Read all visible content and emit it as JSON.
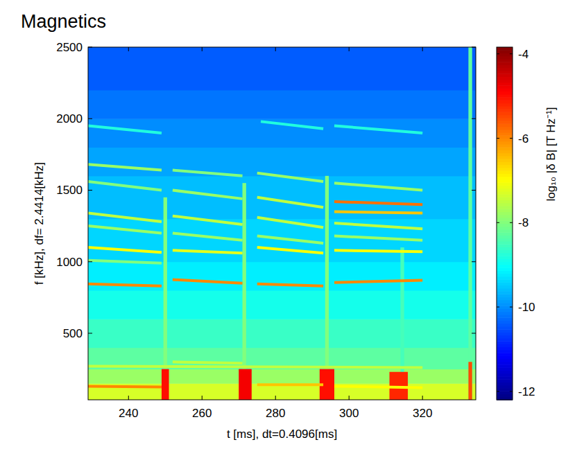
{
  "chart_data": {
    "type": "spectrogram",
    "title": "Magnetics",
    "xlabel": "t [ms], dt=0.4096[ms]",
    "ylabel": "f [kHz], df= 2.4414[kHz]",
    "xlim": [
      229,
      334.5
    ],
    "ylim": [
      35,
      2500
    ],
    "xticks": [
      240,
      260,
      280,
      300,
      320
    ],
    "yticks": [
      500,
      1000,
      1500,
      2000,
      2500
    ],
    "colorbar": {
      "label": "log₁₀ |δ B| [T Hz⁻¹]",
      "clim": [
        -12.2,
        -3.84
      ],
      "cticks": [
        -12,
        -10,
        -8,
        -6,
        -4
      ]
    },
    "background": {
      "f_edges": [
        35,
        150,
        250,
        400,
        600,
        800,
        1000,
        1300,
        1600,
        1800,
        2000,
        2200,
        2500
      ],
      "values": [
        -7.3,
        -7.8,
        -8.3,
        -8.6,
        -8.9,
        -9.2,
        -9.4,
        -9.6,
        -9.8,
        -10,
        -10.2,
        -10.4
      ]
    },
    "modes": [
      {
        "t": [
          229,
          249
        ],
        "f": [
          845,
          830
        ],
        "value": -6
      },
      {
        "t": [
          229,
          249
        ],
        "f": [
          1100,
          1065
        ],
        "value": -7
      },
      {
        "t": [
          229,
          249
        ],
        "f": [
          1680,
          1640
        ],
        "value": -7.8
      },
      {
        "t": [
          229,
          249
        ],
        "f": [
          1560,
          1500
        ],
        "value": -8
      },
      {
        "t": [
          229,
          249
        ],
        "f": [
          1340,
          1280
        ],
        "value": -7.5
      },
      {
        "t": [
          229,
          249
        ],
        "f": [
          1250,
          1200
        ],
        "value": -7.8
      },
      {
        "t": [
          229,
          249
        ],
        "f": [
          1010,
          990
        ],
        "value": -8
      },
      {
        "t": [
          229,
          249
        ],
        "f": [
          130,
          125
        ],
        "value": -6
      },
      {
        "t": [
          229,
          249
        ],
        "f": [
          1950,
          1900
        ],
        "value": -8.8
      },
      {
        "t": [
          252,
          271
        ],
        "f": [
          875,
          850
        ],
        "value": -6
      },
      {
        "t": [
          252,
          271
        ],
        "f": [
          1080,
          1060
        ],
        "value": -7.2
      },
      {
        "t": [
          252,
          271
        ],
        "f": [
          1640,
          1600
        ],
        "value": -8
      },
      {
        "t": [
          252,
          271
        ],
        "f": [
          1500,
          1440
        ],
        "value": -7.8
      },
      {
        "t": [
          252,
          271
        ],
        "f": [
          1320,
          1260
        ],
        "value": -7.5
      },
      {
        "t": [
          252,
          271
        ],
        "f": [
          1200,
          1150
        ],
        "value": -7.8
      },
      {
        "t": [
          252,
          271
        ],
        "f": [
          300,
          290
        ],
        "value": -7.5
      },
      {
        "t": [
          275,
          293
        ],
        "f": [
          845,
          830
        ],
        "value": -6
      },
      {
        "t": [
          275,
          293
        ],
        "f": [
          1100,
          1060
        ],
        "value": -7
      },
      {
        "t": [
          275,
          293
        ],
        "f": [
          1620,
          1560
        ],
        "value": -7.8
      },
      {
        "t": [
          275,
          293
        ],
        "f": [
          1450,
          1380
        ],
        "value": -7.5
      },
      {
        "t": [
          275,
          293
        ],
        "f": [
          1310,
          1240
        ],
        "value": -7.5
      },
      {
        "t": [
          275,
          293
        ],
        "f": [
          1180,
          1130
        ],
        "value": -7.8
      },
      {
        "t": [
          275,
          293
        ],
        "f": [
          140,
          140
        ],
        "value": -6.5
      },
      {
        "t": [
          276,
          293
        ],
        "f": [
          1980,
          1930
        ],
        "value": -8.8
      },
      {
        "t": [
          296,
          320
        ],
        "f": [
          855,
          870
        ],
        "value": -6
      },
      {
        "t": [
          296,
          320
        ],
        "f": [
          1080,
          1070
        ],
        "value": -7
      },
      {
        "t": [
          296,
          320
        ],
        "f": [
          1420,
          1400
        ],
        "value": -5.8
      },
      {
        "t": [
          296,
          320
        ],
        "f": [
          1350,
          1340
        ],
        "value": -6.5
      },
      {
        "t": [
          296,
          320
        ],
        "f": [
          1550,
          1500
        ],
        "value": -7.8
      },
      {
        "t": [
          296,
          320
        ],
        "f": [
          1270,
          1230
        ],
        "value": -7.5
      },
      {
        "t": [
          296,
          320
        ],
        "f": [
          1180,
          1150
        ],
        "value": -7.8
      },
      {
        "t": [
          296,
          320
        ],
        "f": [
          130,
          120
        ],
        "value": -7
      },
      {
        "t": [
          296,
          320
        ],
        "f": [
          1950,
          1900
        ],
        "value": -8.8
      },
      {
        "t": [
          229,
          320
        ],
        "f": [
          270,
          260
        ],
        "value": -7.5
      }
    ],
    "patches": [
      {
        "t": [
          249.5,
          250.5
        ],
        "f": [
          35,
          1450
        ],
        "value": -8
      },
      {
        "t": [
          271,
          272
        ],
        "f": [
          35,
          1550
        ],
        "value": -8
      },
      {
        "t": [
          293.5,
          294.5
        ],
        "f": [
          35,
          1600
        ],
        "value": -8
      },
      {
        "t": [
          314,
          315
        ],
        "f": [
          35,
          1100
        ],
        "value": -8.5
      },
      {
        "t": [
          332.5,
          333.5
        ],
        "f": [
          35,
          2500
        ],
        "value": -8.3
      },
      {
        "t": [
          249,
          251
        ],
        "f": [
          35,
          250
        ],
        "value": -5
      },
      {
        "t": [
          270,
          273.5
        ],
        "f": [
          35,
          250
        ],
        "value": -4.8
      },
      {
        "t": [
          292,
          296
        ],
        "f": [
          35,
          250
        ],
        "value": -5
      },
      {
        "t": [
          311,
          316
        ],
        "f": [
          35,
          230
        ],
        "value": -5.2
      },
      {
        "t": [
          332.5,
          333.5
        ],
        "f": [
          35,
          300
        ],
        "value": -5.5
      }
    ]
  }
}
